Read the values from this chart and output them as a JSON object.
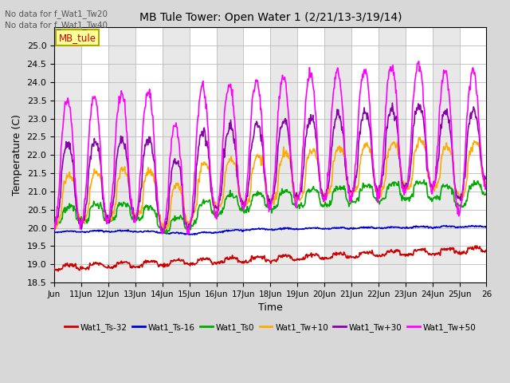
{
  "title": "MB Tule Tower: Open Water 1 (2/21/13-3/19/14)",
  "xlabel": "Time",
  "ylabel": "Temperature (C)",
  "ylim": [
    18.5,
    25.5
  ],
  "yticks": [
    18.5,
    19.0,
    19.5,
    20.0,
    20.5,
    21.0,
    21.5,
    22.0,
    22.5,
    23.0,
    23.5,
    24.0,
    24.5,
    25.0
  ],
  "x_labels": [
    "Jun",
    "11Jun",
    "12Jun",
    "13Jun",
    "14Jun",
    "15Jun",
    "16Jun",
    "17Jun",
    "18Jun",
    "19Jun",
    "20Jun",
    "21Jun",
    "22Jun",
    "23Jun",
    "24Jun",
    "25Jun",
    "26"
  ],
  "no_data_text": [
    "No data for f_Wat1_Tw20",
    "No data for f_Wat1_Tw40"
  ],
  "annotation_text": "MB_tule",
  "legend": [
    {
      "label": "Wat1_Ts-32",
      "color": "#cc0000",
      "lw": 1.2
    },
    {
      "label": "Wat1_Ts-16",
      "color": "#0000cc",
      "lw": 1.2
    },
    {
      "label": "Wat1_Ts0",
      "color": "#00aa00",
      "lw": 1.2
    },
    {
      "label": "Wat1_Tw+10",
      "color": "#ffaa00",
      "lw": 1.2
    },
    {
      "label": "Wat1_Tw+30",
      "color": "#8800aa",
      "lw": 1.2
    },
    {
      "label": "Wat1_Tw+50",
      "color": "#ff00ff",
      "lw": 1.2
    }
  ],
  "bg_color": "#d8d8d8",
  "plot_bg_color": "#ffffff",
  "grid_color": "#bbbbbb",
  "alt_band_color": "#e8e8e8"
}
